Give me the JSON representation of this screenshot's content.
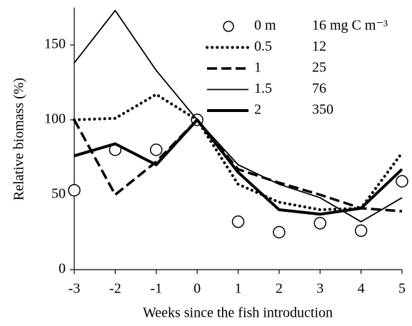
{
  "chart_data": {
    "type": "line",
    "x_label": "Weeks since the fish introduction",
    "y_label": "Relative biomass (%)",
    "x": [
      -3,
      -2,
      -1,
      0,
      1,
      2,
      3,
      4,
      5
    ],
    "xlim": [
      -3,
      5
    ],
    "xticks": [
      -3,
      -2,
      -1,
      0,
      1,
      2,
      3,
      4,
      5
    ],
    "ylim": [
      0,
      175
    ],
    "yticks": [
      0,
      50,
      100,
      150
    ],
    "series": [
      {
        "name": "0 m",
        "legend_value": "16 mg C m⁻³",
        "color": "#000000",
        "line_style": "markers",
        "values": [
          53,
          80,
          80,
          100,
          32,
          25,
          31,
          26,
          59
        ]
      },
      {
        "name": "0.5",
        "legend_value": "12",
        "color": "#000000",
        "line_style": "dotted",
        "values": [
          100,
          101,
          117,
          100,
          57,
          45,
          40,
          41,
          78
        ]
      },
      {
        "name": "1",
        "legend_value": "25",
        "color": "#000000",
        "line_style": "dashed",
        "values": [
          100,
          50,
          72,
          100,
          67,
          58,
          50,
          41,
          39
        ]
      },
      {
        "name": "1.5",
        "legend_value": "76",
        "color": "#000000",
        "line_style": "thin",
        "values": [
          138,
          173,
          133,
          100,
          70,
          57,
          48,
          32,
          48
        ]
      },
      {
        "name": "2",
        "legend_value": "350",
        "color": "#000000",
        "line_style": "thick",
        "values": [
          76,
          84,
          70,
          100,
          65,
          40,
          37,
          41,
          67
        ]
      }
    ]
  }
}
